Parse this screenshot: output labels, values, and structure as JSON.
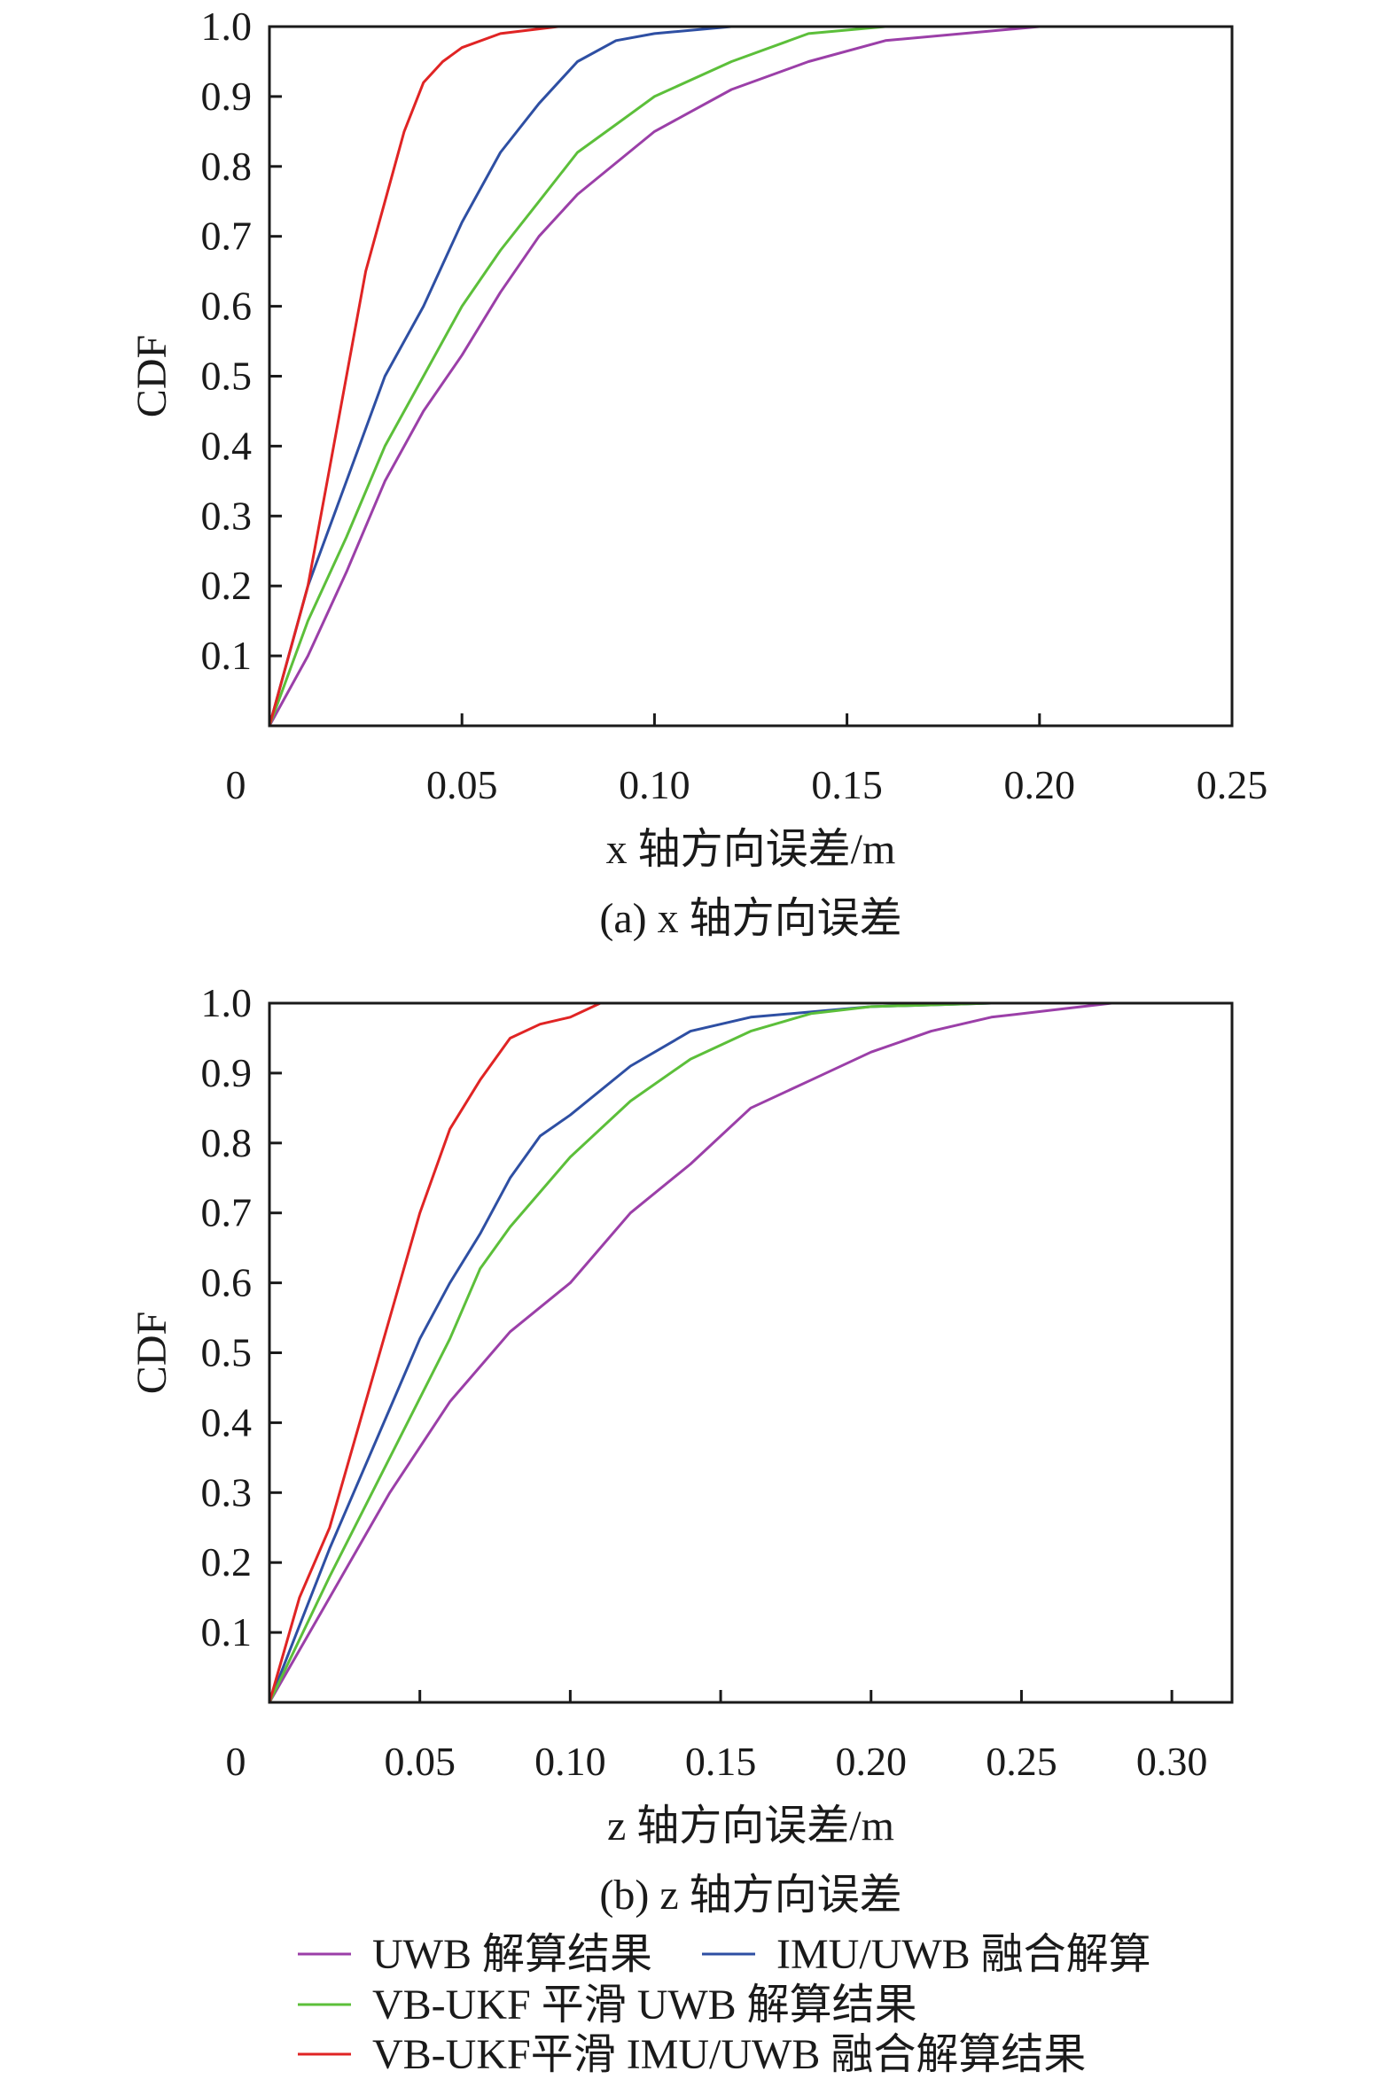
{
  "chart_data": [
    {
      "type": "line",
      "title": "(a) x 轴方向误差",
      "xlabel": "x 轴方向误差/m",
      "ylabel": "CDF",
      "xlim": [
        0,
        0.25
      ],
      "ylim": [
        0,
        1.0
      ],
      "xticks": [
        0,
        0.05,
        0.1,
        0.15,
        0.2,
        0.25
      ],
      "xtick_labels": [
        "0",
        "0.05",
        "0.10",
        "0.15",
        "0.20",
        "0.25"
      ],
      "yticks": [
        0.1,
        0.2,
        0.3,
        0.4,
        0.5,
        0.6,
        0.7,
        0.8,
        0.9,
        1.0
      ],
      "ytick_labels": [
        "0.1",
        "0.2",
        "0.3",
        "0.4",
        "0.5",
        "0.6",
        "0.7",
        "0.8",
        "0.9",
        "1.0"
      ],
      "grid": false,
      "series": [
        {
          "name": "UWB 解算结果",
          "color": "#9b3fa8",
          "points": [
            [
              0,
              0
            ],
            [
              0.01,
              0.1
            ],
            [
              0.02,
              0.22
            ],
            [
              0.03,
              0.35
            ],
            [
              0.04,
              0.45
            ],
            [
              0.05,
              0.53
            ],
            [
              0.06,
              0.62
            ],
            [
              0.07,
              0.7
            ],
            [
              0.08,
              0.76
            ],
            [
              0.1,
              0.85
            ],
            [
              0.12,
              0.91
            ],
            [
              0.14,
              0.95
            ],
            [
              0.16,
              0.98
            ],
            [
              0.2,
              1.0
            ],
            [
              0.215,
              1.0
            ]
          ]
        },
        {
          "name": "IMU/UWB 融合解算",
          "color": "#2e4fa3",
          "points": [
            [
              0,
              0
            ],
            [
              0.01,
              0.2
            ],
            [
              0.02,
              0.35
            ],
            [
              0.03,
              0.5
            ],
            [
              0.04,
              0.6
            ],
            [
              0.05,
              0.72
            ],
            [
              0.06,
              0.82
            ],
            [
              0.07,
              0.89
            ],
            [
              0.08,
              0.95
            ],
            [
              0.09,
              0.98
            ],
            [
              0.1,
              0.99
            ],
            [
              0.12,
              1.0
            ]
          ]
        },
        {
          "name": "VB-UKF 平滑 UWB 解算结果",
          "color": "#5cbf3a",
          "points": [
            [
              0,
              0
            ],
            [
              0.01,
              0.15
            ],
            [
              0.02,
              0.27
            ],
            [
              0.03,
              0.4
            ],
            [
              0.04,
              0.5
            ],
            [
              0.05,
              0.6
            ],
            [
              0.06,
              0.68
            ],
            [
              0.07,
              0.75
            ],
            [
              0.08,
              0.82
            ],
            [
              0.09,
              0.86
            ],
            [
              0.1,
              0.9
            ],
            [
              0.12,
              0.95
            ],
            [
              0.14,
              0.99
            ],
            [
              0.16,
              1.0
            ]
          ]
        },
        {
          "name": "VB-UKF平滑 IMU/UWB 融合解算结果",
          "color": "#e02424",
          "points": [
            [
              0,
              0
            ],
            [
              0.005,
              0.1
            ],
            [
              0.01,
              0.2
            ],
            [
              0.015,
              0.35
            ],
            [
              0.02,
              0.5
            ],
            [
              0.025,
              0.65
            ],
            [
              0.03,
              0.75
            ],
            [
              0.035,
              0.85
            ],
            [
              0.04,
              0.92
            ],
            [
              0.045,
              0.95
            ],
            [
              0.05,
              0.97
            ],
            [
              0.06,
              0.99
            ],
            [
              0.075,
              1.0
            ]
          ]
        }
      ]
    },
    {
      "type": "line",
      "title": "(b) z 轴方向误差",
      "xlabel": "z 轴方向误差/m",
      "ylabel": "CDF",
      "xlim": [
        0,
        0.32
      ],
      "ylim": [
        0,
        1.0
      ],
      "xticks": [
        0,
        0.05,
        0.1,
        0.15,
        0.2,
        0.25,
        0.3
      ],
      "xtick_labels": [
        "0",
        "0.05",
        "0.10",
        "0.15",
        "0.20",
        "0.25",
        "0.30"
      ],
      "yticks": [
        0.1,
        0.2,
        0.3,
        0.4,
        0.5,
        0.6,
        0.7,
        0.8,
        0.9,
        1.0
      ],
      "ytick_labels": [
        "0.1",
        "0.2",
        "0.3",
        "0.4",
        "0.5",
        "0.6",
        "0.7",
        "0.8",
        "0.9",
        "1.0"
      ],
      "grid": false,
      "series": [
        {
          "name": "UWB 解算结果",
          "color": "#9b3fa8",
          "points": [
            [
              0,
              0
            ],
            [
              0.02,
              0.15
            ],
            [
              0.04,
              0.3
            ],
            [
              0.06,
              0.43
            ],
            [
              0.08,
              0.53
            ],
            [
              0.1,
              0.6
            ],
            [
              0.12,
              0.7
            ],
            [
              0.14,
              0.77
            ],
            [
              0.16,
              0.85
            ],
            [
              0.18,
              0.89
            ],
            [
              0.2,
              0.93
            ],
            [
              0.22,
              0.96
            ],
            [
              0.24,
              0.98
            ],
            [
              0.26,
              0.99
            ],
            [
              0.28,
              1.0
            ],
            [
              0.31,
              1.0
            ]
          ]
        },
        {
          "name": "IMU/UWB 融合解算",
          "color": "#2e4fa3",
          "points": [
            [
              0,
              0
            ],
            [
              0.02,
              0.22
            ],
            [
              0.04,
              0.42
            ],
            [
              0.05,
              0.52
            ],
            [
              0.06,
              0.6
            ],
            [
              0.07,
              0.67
            ],
            [
              0.08,
              0.75
            ],
            [
              0.09,
              0.81
            ],
            [
              0.1,
              0.84
            ],
            [
              0.12,
              0.91
            ],
            [
              0.14,
              0.96
            ],
            [
              0.16,
              0.98
            ],
            [
              0.2,
              0.995
            ],
            [
              0.24,
              1.0
            ]
          ]
        },
        {
          "name": "VB-UKF 平滑 UWB 解算结果",
          "color": "#5cbf3a",
          "points": [
            [
              0,
              0
            ],
            [
              0.02,
              0.18
            ],
            [
              0.04,
              0.35
            ],
            [
              0.06,
              0.52
            ],
            [
              0.07,
              0.62
            ],
            [
              0.08,
              0.68
            ],
            [
              0.1,
              0.78
            ],
            [
              0.12,
              0.86
            ],
            [
              0.14,
              0.92
            ],
            [
              0.16,
              0.96
            ],
            [
              0.18,
              0.985
            ],
            [
              0.2,
              0.995
            ],
            [
              0.24,
              1.0
            ]
          ]
        },
        {
          "name": "VB-UKF平滑 IMU/UWB 融合解算结果",
          "color": "#e02424",
          "points": [
            [
              0,
              0
            ],
            [
              0.01,
              0.15
            ],
            [
              0.02,
              0.25
            ],
            [
              0.03,
              0.4
            ],
            [
              0.04,
              0.55
            ],
            [
              0.05,
              0.7
            ],
            [
              0.06,
              0.82
            ],
            [
              0.07,
              0.89
            ],
            [
              0.08,
              0.95
            ],
            [
              0.09,
              0.97
            ],
            [
              0.1,
              0.98
            ],
            [
              0.11,
              1.0
            ]
          ]
        }
      ]
    }
  ],
  "legend": {
    "placement": "bottom",
    "entries": [
      "UWB 解算结果",
      "IMU/UWB 融合解算",
      "VB-UKF 平滑 UWB 解算结果",
      "VB-UKF平滑 IMU/UWB 融合解算结果"
    ]
  }
}
